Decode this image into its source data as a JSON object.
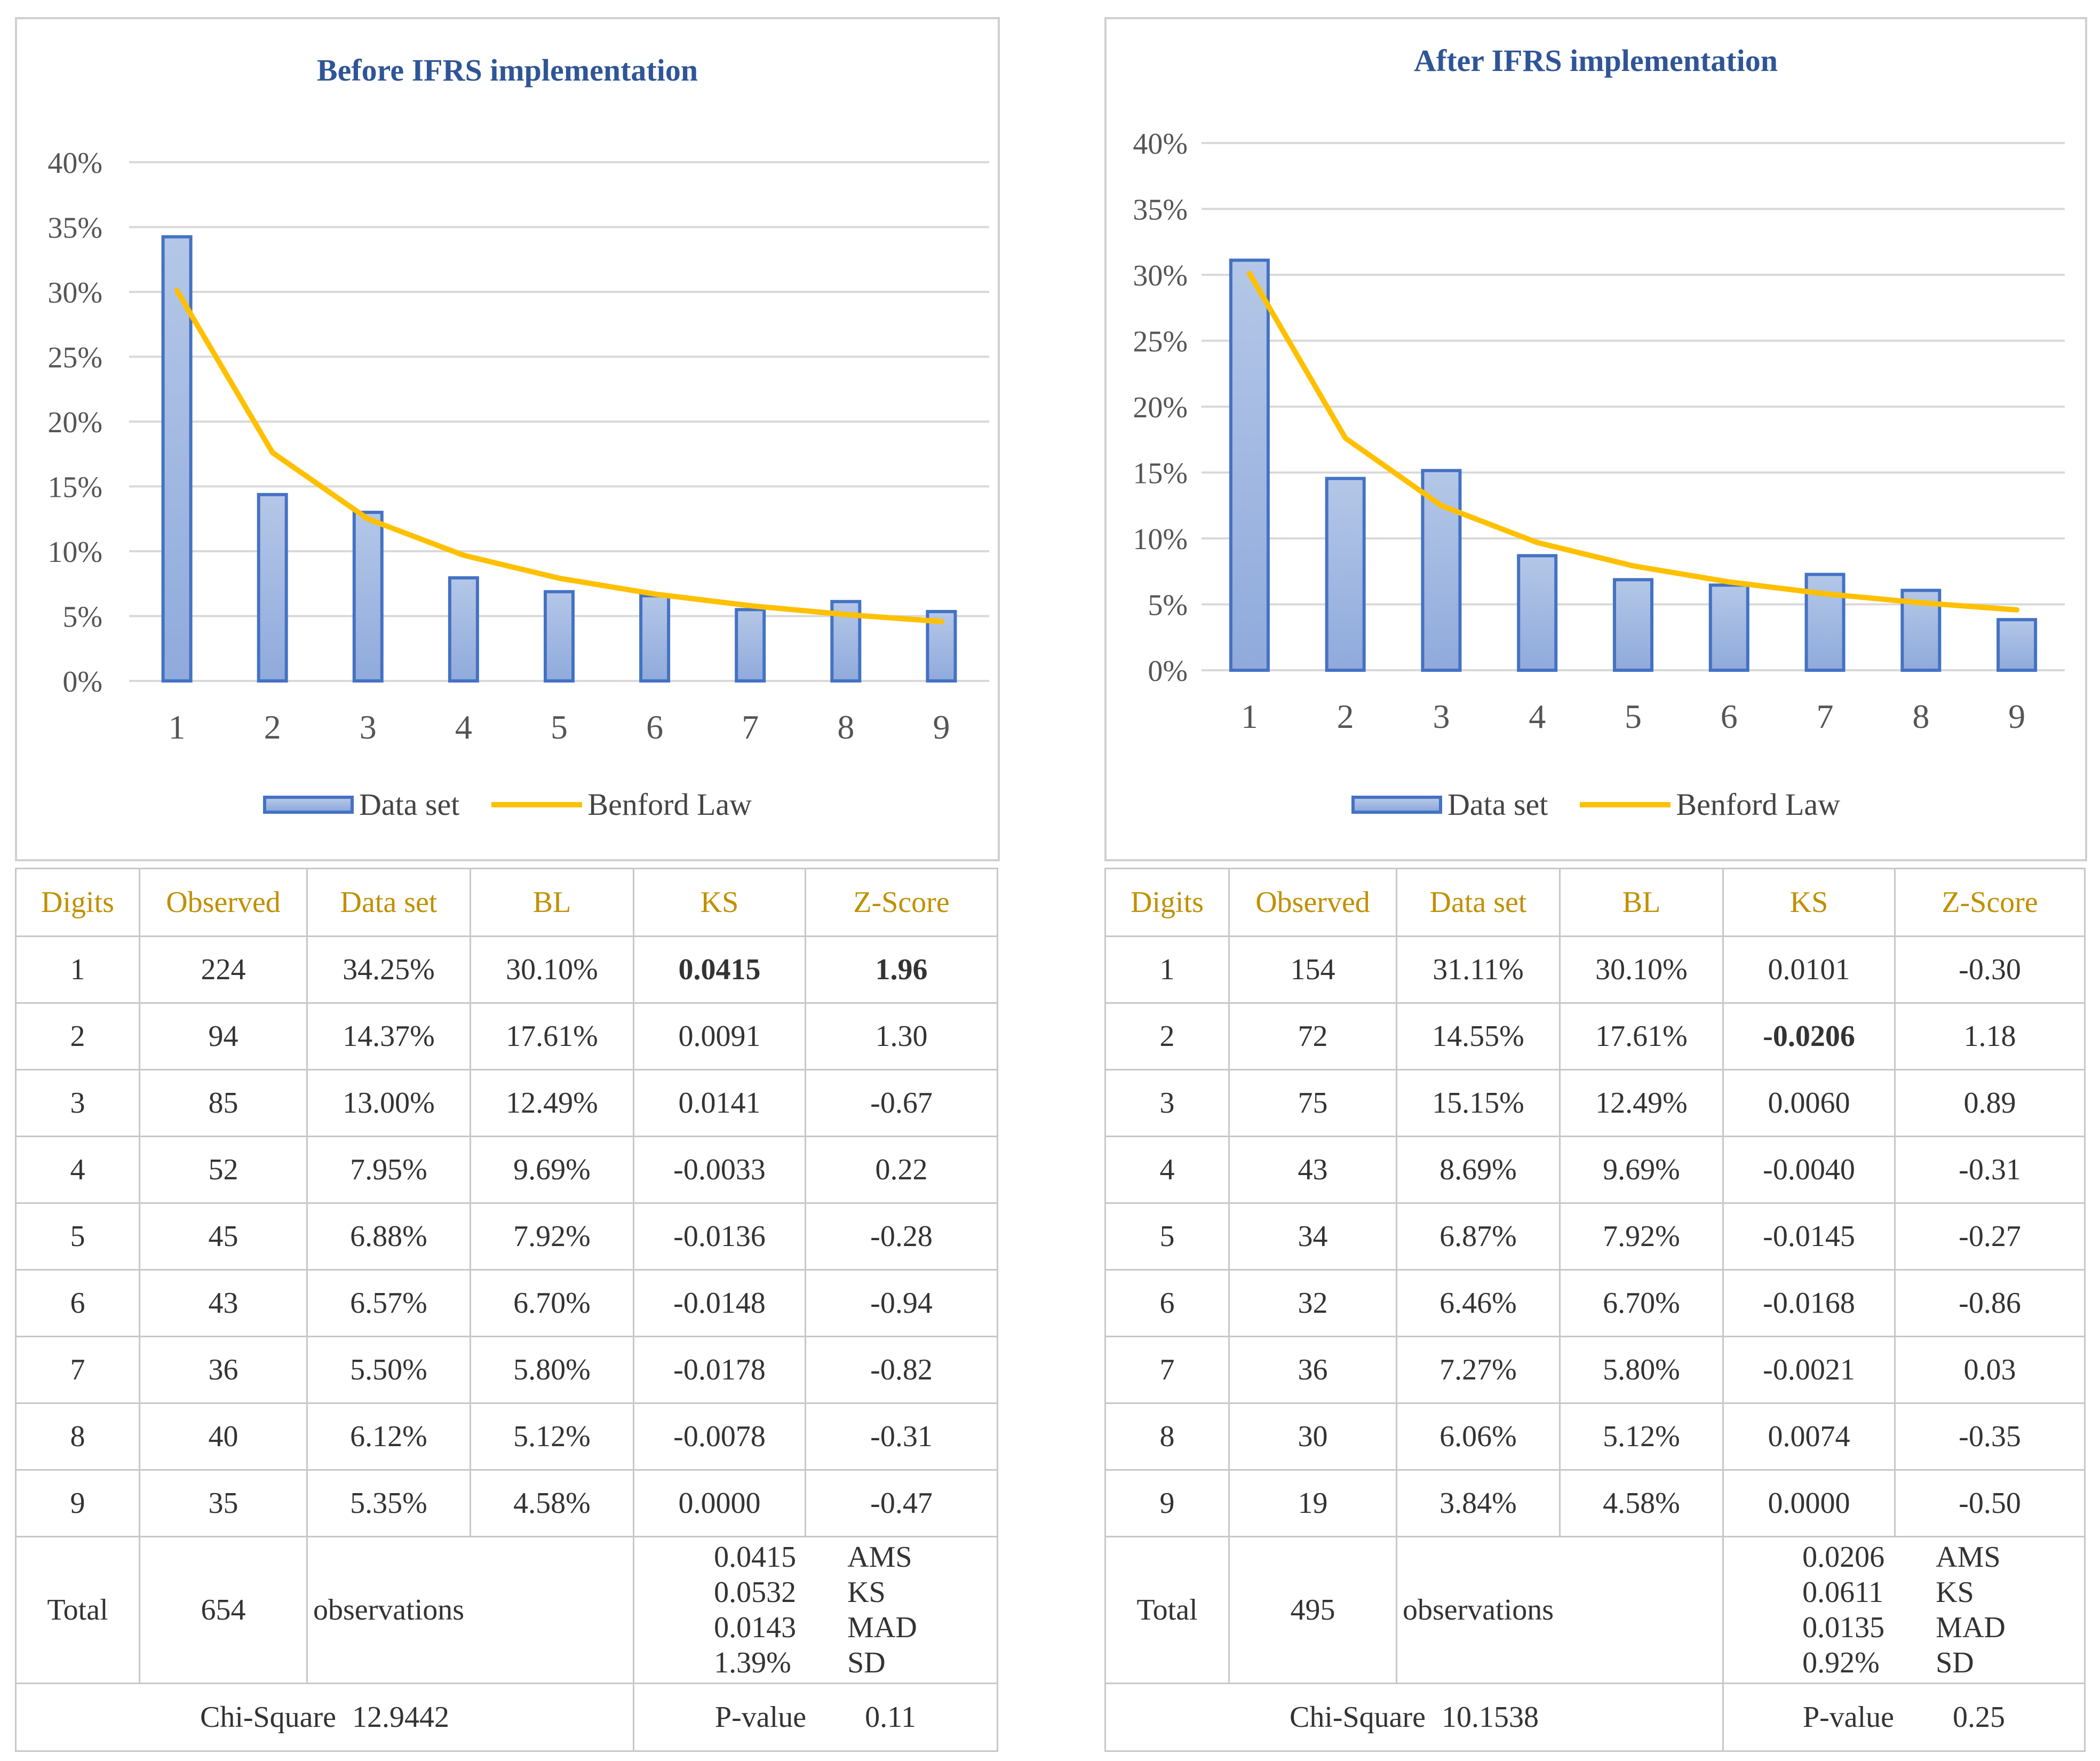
{
  "legend": {
    "bar": "Data set",
    "line": "Benford Law"
  },
  "colors": {
    "bar_fill_top": "#b4c7e7",
    "bar_fill_bottom": "#8faadc",
    "bar_border": "#4472c4",
    "line": "#ffc000",
    "title": "#2f5597",
    "header_text": "#c09000",
    "grid": "#d9d9d9"
  },
  "table_headers": [
    "Digits",
    "Observed",
    "Data set",
    "BL",
    "KS",
    "Z-Score"
  ],
  "stat_labels": {
    "total": "Total",
    "observations": "observations",
    "ams": "AMS",
    "ks": "KS",
    "mad": "MAD",
    "sd": "SD",
    "chi": "Chi-Square",
    "pvalue": "P-value"
  },
  "chart_data": [
    {
      "type": "bar",
      "title": "Before IFRS implementation",
      "categories": [
        "1",
        "2",
        "3",
        "4",
        "5",
        "6",
        "7",
        "8",
        "9"
      ],
      "series": [
        {
          "name": "Data set",
          "type": "bar",
          "values": [
            34.25,
            14.37,
            13.0,
            7.95,
            6.88,
            6.57,
            5.5,
            6.12,
            5.35
          ]
        },
        {
          "name": "Benford Law",
          "type": "line",
          "values": [
            30.1,
            17.61,
            12.49,
            9.69,
            7.92,
            6.7,
            5.8,
            5.12,
            4.58
          ]
        }
      ],
      "yticks": [
        "0%",
        "5%",
        "10%",
        "15%",
        "20%",
        "25%",
        "30%",
        "35%",
        "40%"
      ],
      "ylim": [
        0,
        40
      ],
      "grid": true,
      "legend_position": "bottom",
      "table": {
        "rows": [
          [
            "1",
            "224",
            "34.25%",
            "30.10%",
            "0.0415",
            "1.96"
          ],
          [
            "2",
            "94",
            "14.37%",
            "17.61%",
            "0.0091",
            "1.30"
          ],
          [
            "3",
            "85",
            "13.00%",
            "12.49%",
            "0.0141",
            "-0.67"
          ],
          [
            "4",
            "52",
            "7.95%",
            "9.69%",
            "-0.0033",
            "0.22"
          ],
          [
            "5",
            "45",
            "6.88%",
            "7.92%",
            "-0.0136",
            "-0.28"
          ],
          [
            "6",
            "43",
            "6.57%",
            "6.70%",
            "-0.0148",
            "-0.94"
          ],
          [
            "7",
            "36",
            "5.50%",
            "5.80%",
            "-0.0178",
            "-0.82"
          ],
          [
            "8",
            "40",
            "6.12%",
            "5.12%",
            "-0.0078",
            "-0.31"
          ],
          [
            "9",
            "35",
            "5.35%",
            "4.58%",
            "0.0000",
            "-0.47"
          ]
        ],
        "bold_cells": [
          [
            0,
            4
          ],
          [
            0,
            5
          ]
        ],
        "total": "654",
        "ams": "0.0415",
        "ks": "0.0532",
        "mad": "0.0143",
        "sd": "1.39%",
        "chi_square": "12.9442",
        "p_value": "0.11"
      }
    },
    {
      "type": "bar",
      "title": "After IFRS implementation",
      "categories": [
        "1",
        "2",
        "3",
        "4",
        "5",
        "6",
        "7",
        "8",
        "9"
      ],
      "series": [
        {
          "name": "Data set",
          "type": "bar",
          "values": [
            31.11,
            14.55,
            15.15,
            8.69,
            6.87,
            6.46,
            7.27,
            6.06,
            3.84
          ]
        },
        {
          "name": "Benford Law",
          "type": "line",
          "values": [
            30.1,
            17.61,
            12.49,
            9.69,
            7.92,
            6.7,
            5.8,
            5.12,
            4.58
          ]
        }
      ],
      "yticks": [
        "0%",
        "5%",
        "10%",
        "15%",
        "20%",
        "25%",
        "30%",
        "35%",
        "40%"
      ],
      "ylim": [
        0,
        40
      ],
      "grid": true,
      "legend_position": "bottom",
      "table": {
        "rows": [
          [
            "1",
            "154",
            "31.11%",
            "30.10%",
            "0.0101",
            "-0.30"
          ],
          [
            "2",
            "72",
            "14.55%",
            "17.61%",
            "-0.0206",
            "1.18"
          ],
          [
            "3",
            "75",
            "15.15%",
            "12.49%",
            "0.0060",
            "0.89"
          ],
          [
            "4",
            "43",
            "8.69%",
            "9.69%",
            "-0.0040",
            "-0.31"
          ],
          [
            "5",
            "34",
            "6.87%",
            "7.92%",
            "-0.0145",
            "-0.27"
          ],
          [
            "6",
            "32",
            "6.46%",
            "6.70%",
            "-0.0168",
            "-0.86"
          ],
          [
            "7",
            "36",
            "7.27%",
            "5.80%",
            "-0.0021",
            "0.03"
          ],
          [
            "8",
            "30",
            "6.06%",
            "5.12%",
            "0.0074",
            "-0.35"
          ],
          [
            "9",
            "19",
            "3.84%",
            "4.58%",
            "0.0000",
            "-0.50"
          ]
        ],
        "bold_cells": [
          [
            1,
            4
          ]
        ],
        "total": "495",
        "ams": "0.0206",
        "ks": "0.0611",
        "mad": "0.0135",
        "sd": "0.92%",
        "chi_square": "10.1538",
        "p_value": "0.25"
      }
    }
  ]
}
